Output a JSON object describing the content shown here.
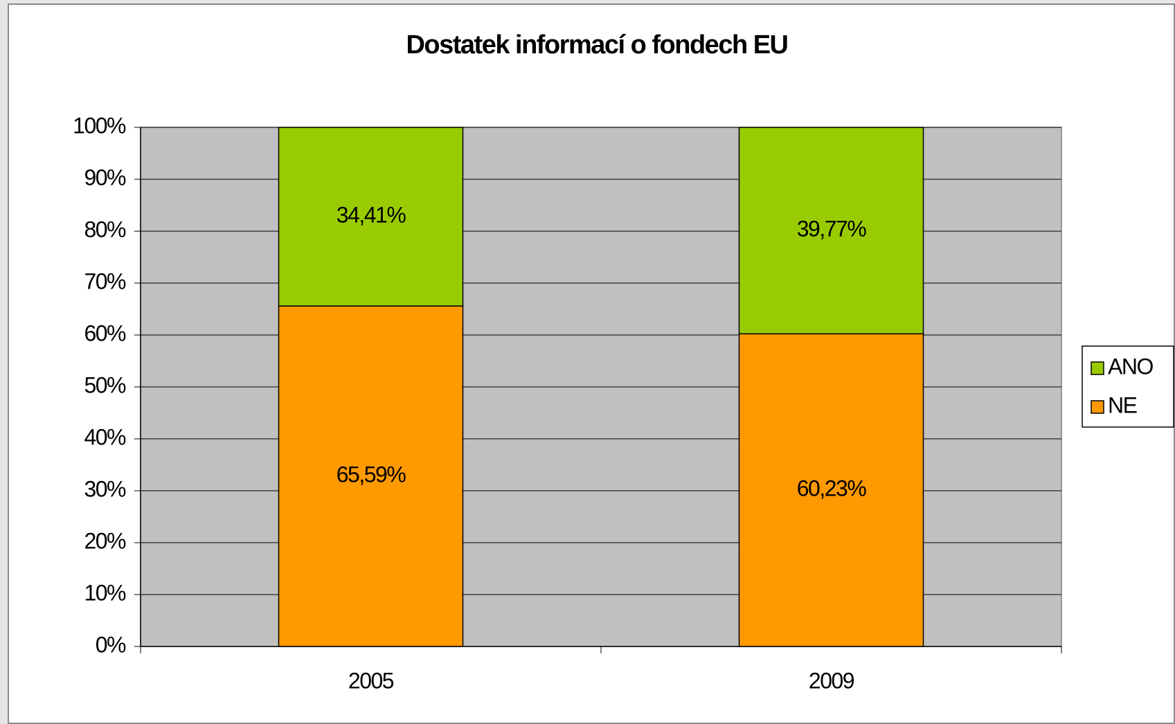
{
  "chart_data": {
    "type": "stacked_bar",
    "title": "Dostatek informací o fondech EU",
    "categories": [
      "2005",
      "2009"
    ],
    "series": [
      {
        "name": "NE",
        "color": "#ff9900",
        "values": [
          65.59,
          60.23
        ],
        "value_labels": [
          "65,59%",
          "60,23%"
        ]
      },
      {
        "name": "ANO",
        "color": "#99cc00",
        "values": [
          34.41,
          39.77
        ],
        "value_labels": [
          "34,41%",
          "39,77%"
        ]
      }
    ],
    "ylim": [
      0,
      100
    ],
    "yticks": [
      {
        "value": 0,
        "label": "0%"
      },
      {
        "value": 10,
        "label": "10%"
      },
      {
        "value": 20,
        "label": "20%"
      },
      {
        "value": 30,
        "label": "30%"
      },
      {
        "value": 40,
        "label": "40%"
      },
      {
        "value": 50,
        "label": "50%"
      },
      {
        "value": 60,
        "label": "60%"
      },
      {
        "value": 70,
        "label": "70%"
      },
      {
        "value": 80,
        "label": "80%"
      },
      {
        "value": 90,
        "label": "90%"
      },
      {
        "value": 100,
        "label": "100%"
      }
    ],
    "grid": true,
    "legend": "right"
  }
}
